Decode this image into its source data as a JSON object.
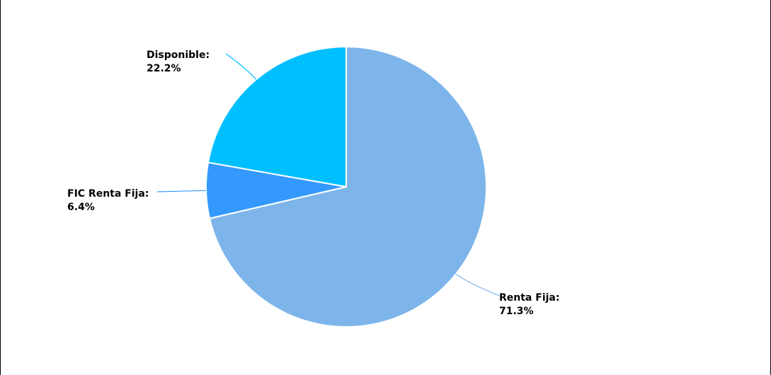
{
  "chart_data": {
    "type": "pie",
    "title": "",
    "slices": [
      {
        "label": "Renta Fija:",
        "value_label": "71.3%",
        "value": 71.3,
        "color": "#7DB5EA"
      },
      {
        "label": "FIC Renta Fija:",
        "value_label": "6.4%",
        "value": 6.4,
        "color": "#3399FF"
      },
      {
        "label": "Disponible:",
        "value_label": "22.2%",
        "value": 22.2,
        "color": "#00BFFF"
      }
    ],
    "start_angle_deg": 0,
    "direction": "clockwise",
    "legend": "none"
  }
}
